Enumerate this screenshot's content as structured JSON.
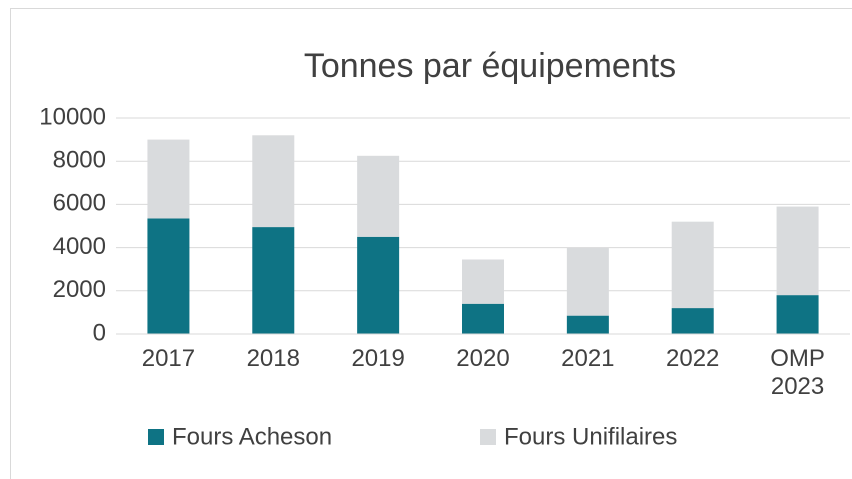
{
  "chart_data": {
    "type": "stacked_bar",
    "title": "Tonnes par équipements",
    "categories": [
      "2017",
      "2018",
      "2019",
      "2020",
      "2021",
      "2022",
      "OMP 2023"
    ],
    "series": [
      {
        "name": "Fours Acheson",
        "color": "#0e7384",
        "values": [
          5350,
          4950,
          4500,
          1400,
          850,
          1200,
          1800
        ]
      },
      {
        "name": "Fours Unifilaires",
        "color": "#d9dbdd",
        "values": [
          3650,
          4250,
          3750,
          2050,
          3150,
          4000,
          4100
        ]
      }
    ],
    "ylim": [
      0,
      10000
    ],
    "yticks": [
      0,
      2000,
      4000,
      6000,
      8000,
      10000
    ],
    "grid": true,
    "legend": "bottom"
  }
}
